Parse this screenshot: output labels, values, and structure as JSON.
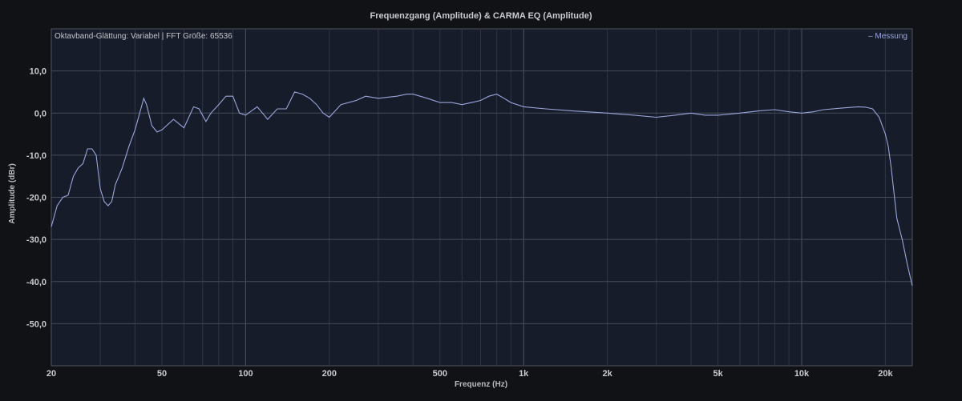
{
  "chart_data": {
    "type": "line",
    "title": "Frequenzgang (Amplitude) & CARMA EQ (Amplitude)",
    "subtitle": "Oktavband-Glättung: Variabel | FFT Größe: 65536",
    "xlabel": "Frequenz (Hz)",
    "ylabel": "Amplitude (dBr)",
    "x_scale": "log",
    "xlim": [
      20,
      25000
    ],
    "ylim": [
      -60,
      20
    ],
    "grid": true,
    "legend_position": "top-right",
    "x_ticks": [
      {
        "value": 20,
        "label": "20"
      },
      {
        "value": 50,
        "label": "50"
      },
      {
        "value": 100,
        "label": "100"
      },
      {
        "value": 200,
        "label": "200"
      },
      {
        "value": 500,
        "label": "500"
      },
      {
        "value": 1000,
        "label": "1k"
      },
      {
        "value": 2000,
        "label": "2k"
      },
      {
        "value": 5000,
        "label": "5k"
      },
      {
        "value": 10000,
        "label": "10k"
      },
      {
        "value": 20000,
        "label": "20k"
      }
    ],
    "y_ticks": [
      {
        "value": 10,
        "label": "10,0"
      },
      {
        "value": 0,
        "label": "0,0"
      },
      {
        "value": -10,
        "label": "-10,0"
      },
      {
        "value": -20,
        "label": "-20,0"
      },
      {
        "value": -30,
        "label": "-30,0"
      },
      {
        "value": -40,
        "label": "-40,0"
      },
      {
        "value": -50,
        "label": "-50,0"
      }
    ],
    "series": [
      {
        "name": "Messung",
        "color": "#9aa6d9",
        "points": [
          [
            20,
            -27
          ],
          [
            21,
            -22
          ],
          [
            22,
            -20
          ],
          [
            23,
            -19.5
          ],
          [
            24,
            -15
          ],
          [
            25,
            -13
          ],
          [
            26,
            -12
          ],
          [
            27,
            -8.5
          ],
          [
            28,
            -8.5
          ],
          [
            29,
            -10
          ],
          [
            30,
            -18
          ],
          [
            31,
            -21
          ],
          [
            32,
            -22
          ],
          [
            33,
            -21
          ],
          [
            34,
            -17
          ],
          [
            36,
            -13
          ],
          [
            38,
            -8
          ],
          [
            40,
            -4
          ],
          [
            42,
            1
          ],
          [
            43,
            3.5
          ],
          [
            44,
            2
          ],
          [
            46,
            -3
          ],
          [
            48,
            -4.5
          ],
          [
            50,
            -4
          ],
          [
            55,
            -1.5
          ],
          [
            60,
            -3.5
          ],
          [
            65,
            1.5
          ],
          [
            68,
            1
          ],
          [
            72,
            -2
          ],
          [
            75,
            0
          ],
          [
            80,
            2
          ],
          [
            85,
            4
          ],
          [
            90,
            4
          ],
          [
            95,
            0
          ],
          [
            100,
            -0.5
          ],
          [
            105,
            0.5
          ],
          [
            110,
            1.5
          ],
          [
            115,
            0
          ],
          [
            120,
            -1.5
          ],
          [
            130,
            1
          ],
          [
            140,
            1
          ],
          [
            150,
            5
          ],
          [
            160,
            4.5
          ],
          [
            170,
            3.5
          ],
          [
            180,
            2
          ],
          [
            190,
            0
          ],
          [
            200,
            -1
          ],
          [
            220,
            2
          ],
          [
            250,
            3
          ],
          [
            270,
            4
          ],
          [
            300,
            3.5
          ],
          [
            350,
            4
          ],
          [
            380,
            4.5
          ],
          [
            400,
            4.5
          ],
          [
            450,
            3.5
          ],
          [
            500,
            2.5
          ],
          [
            550,
            2.5
          ],
          [
            600,
            2
          ],
          [
            650,
            2.5
          ],
          [
            700,
            3
          ],
          [
            750,
            4
          ],
          [
            800,
            4.5
          ],
          [
            850,
            3.5
          ],
          [
            900,
            2.5
          ],
          [
            1000,
            1.5
          ],
          [
            1200,
            1
          ],
          [
            1500,
            0.5
          ],
          [
            2000,
            0
          ],
          [
            2500,
            -0.5
          ],
          [
            3000,
            -1
          ],
          [
            3500,
            -0.5
          ],
          [
            4000,
            0
          ],
          [
            4500,
            -0.5
          ],
          [
            5000,
            -0.5
          ],
          [
            6000,
            0
          ],
          [
            7000,
            0.5
          ],
          [
            8000,
            0.8
          ],
          [
            9000,
            0.3
          ],
          [
            10000,
            0
          ],
          [
            11000,
            0.3
          ],
          [
            12000,
            0.8
          ],
          [
            14000,
            1.2
          ],
          [
            16000,
            1.5
          ],
          [
            17000,
            1.4
          ],
          [
            18000,
            1
          ],
          [
            19000,
            -1
          ],
          [
            20000,
            -5
          ],
          [
            20500,
            -8
          ],
          [
            21000,
            -13
          ],
          [
            22000,
            -25
          ],
          [
            23000,
            -30
          ],
          [
            24000,
            -36
          ],
          [
            25000,
            -41
          ]
        ]
      }
    ]
  }
}
